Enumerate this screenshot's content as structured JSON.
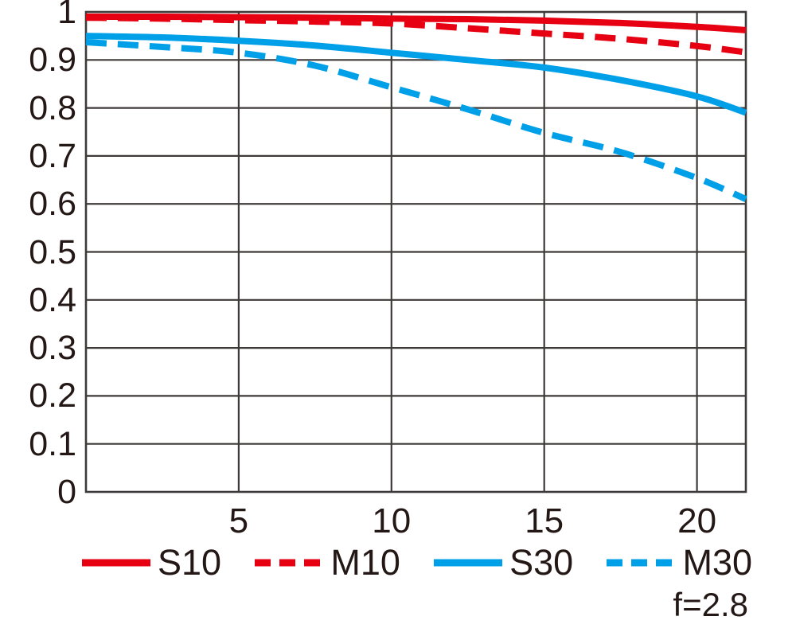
{
  "chart_data": {
    "type": "line",
    "title": "",
    "xlabel": "",
    "ylabel": "",
    "xlim": [
      0,
      21.6
    ],
    "ylim": [
      0,
      1
    ],
    "x_ticks": [
      "5",
      "10",
      "15",
      "20"
    ],
    "y_ticks": [
      "1",
      "0.9",
      "0.8",
      "0.7",
      "0.6",
      "0.5",
      "0.4",
      "0.3",
      "0.2",
      "0.1",
      "0"
    ],
    "grid": true,
    "legend_position": "bottom",
    "x": [
      0,
      2.5,
      5,
      7.5,
      10,
      12.5,
      15,
      17.5,
      20,
      21.6
    ],
    "series": [
      {
        "name": "S10",
        "color": "#e60012",
        "style": "solid",
        "values": [
          0.99,
          0.99,
          0.989,
          0.988,
          0.986,
          0.985,
          0.982,
          0.977,
          0.969,
          0.962
        ]
      },
      {
        "name": "M10",
        "color": "#e60012",
        "style": "dashed",
        "values": [
          0.988,
          0.986,
          0.983,
          0.98,
          0.976,
          0.966,
          0.955,
          0.944,
          0.929,
          0.916
        ]
      },
      {
        "name": "S30",
        "color": "#00a0e9",
        "style": "solid",
        "values": [
          0.95,
          0.947,
          0.94,
          0.93,
          0.915,
          0.9,
          0.884,
          0.858,
          0.824,
          0.79
        ]
      },
      {
        "name": "M30",
        "color": "#00a0e9",
        "style": "dashed",
        "values": [
          0.937,
          0.927,
          0.915,
          0.888,
          0.843,
          0.797,
          0.748,
          0.708,
          0.654,
          0.61
        ]
      }
    ],
    "annotation": "f=2.8",
    "colors": {
      "grid": "#3e3a39",
      "text": "#231815",
      "background": "#ffffff"
    }
  }
}
